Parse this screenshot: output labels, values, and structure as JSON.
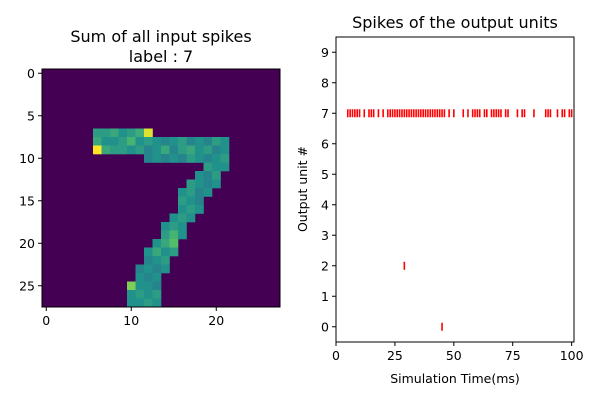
{
  "chart_data": [
    {
      "type": "heatmap",
      "title": "Sum of all input spikes",
      "subtitle": "label : 7",
      "x_ticks": [
        "0",
        "10",
        "20"
      ],
      "y_ticks": [
        "0",
        "5",
        "10",
        "15",
        "20",
        "25"
      ],
      "grid": false,
      "shape": [
        28,
        28
      ],
      "colormap": "viridis",
      "background": "#440154",
      "cells": [
        [
          6,
          7,
          0.55
        ],
        [
          7,
          7,
          0.55
        ],
        [
          8,
          7,
          0.6
        ],
        [
          9,
          7,
          0.5
        ],
        [
          10,
          7,
          0.55
        ],
        [
          11,
          7,
          0.62
        ],
        [
          12,
          7,
          0.95
        ],
        [
          6,
          8,
          0.6
        ],
        [
          7,
          8,
          0.5
        ],
        [
          8,
          8,
          0.5
        ],
        [
          9,
          8,
          0.55
        ],
        [
          10,
          8,
          0.65
        ],
        [
          11,
          8,
          0.5
        ],
        [
          12,
          8,
          0.55
        ],
        [
          13,
          8,
          0.5
        ],
        [
          14,
          8,
          0.45
        ],
        [
          15,
          8,
          0.5
        ],
        [
          16,
          8,
          0.55
        ],
        [
          17,
          8,
          0.45
        ],
        [
          18,
          8,
          0.5
        ],
        [
          19,
          8,
          0.45
        ],
        [
          20,
          8,
          0.55
        ],
        [
          21,
          8,
          0.5
        ],
        [
          6,
          9,
          1.0
        ],
        [
          7,
          9,
          0.6
        ],
        [
          8,
          9,
          0.55
        ],
        [
          9,
          9,
          0.55
        ],
        [
          10,
          9,
          0.5
        ],
        [
          11,
          9,
          0.55
        ],
        [
          12,
          9,
          0.45
        ],
        [
          13,
          9,
          0.5
        ],
        [
          14,
          9,
          0.6
        ],
        [
          15,
          9,
          0.45
        ],
        [
          16,
          9,
          0.55
        ],
        [
          17,
          9,
          0.6
        ],
        [
          18,
          9,
          0.5
        ],
        [
          19,
          9,
          0.55
        ],
        [
          20,
          9,
          0.45
        ],
        [
          21,
          9,
          0.5
        ],
        [
          12,
          10,
          0.45
        ],
        [
          13,
          10,
          0.5
        ],
        [
          14,
          10,
          0.45
        ],
        [
          15,
          10,
          0.5
        ],
        [
          16,
          10,
          0.45
        ],
        [
          17,
          10,
          0.55
        ],
        [
          18,
          10,
          0.5
        ],
        [
          19,
          10,
          0.45
        ],
        [
          20,
          10,
          0.5
        ],
        [
          21,
          10,
          0.55
        ],
        [
          19,
          11,
          0.55
        ],
        [
          20,
          11,
          0.5
        ],
        [
          21,
          11,
          0.5
        ],
        [
          18,
          12,
          0.5
        ],
        [
          19,
          12,
          0.45
        ],
        [
          20,
          12,
          0.55
        ],
        [
          17,
          13,
          0.55
        ],
        [
          18,
          13,
          0.5
        ],
        [
          19,
          13,
          0.45
        ],
        [
          20,
          13,
          0.5
        ],
        [
          16,
          14,
          0.5
        ],
        [
          17,
          14,
          0.55
        ],
        [
          18,
          14,
          0.45
        ],
        [
          19,
          14,
          0.5
        ],
        [
          16,
          15,
          0.55
        ],
        [
          17,
          15,
          0.5
        ],
        [
          18,
          15,
          0.45
        ],
        [
          16,
          16,
          0.5
        ],
        [
          17,
          16,
          0.55
        ],
        [
          18,
          16,
          0.5
        ],
        [
          15,
          17,
          0.5
        ],
        [
          16,
          17,
          0.55
        ],
        [
          17,
          17,
          0.5
        ],
        [
          14,
          18,
          0.5
        ],
        [
          15,
          18,
          0.55
        ],
        [
          16,
          18,
          0.5
        ],
        [
          14,
          19,
          0.55
        ],
        [
          15,
          19,
          0.65
        ],
        [
          16,
          19,
          0.5
        ],
        [
          13,
          20,
          0.5
        ],
        [
          14,
          20,
          0.6
        ],
        [
          15,
          20,
          0.7
        ],
        [
          12,
          21,
          0.5
        ],
        [
          13,
          21,
          0.6
        ],
        [
          14,
          21,
          0.5
        ],
        [
          15,
          21,
          0.55
        ],
        [
          12,
          22,
          0.45
        ],
        [
          13,
          22,
          0.5
        ],
        [
          14,
          22,
          0.55
        ],
        [
          11,
          23,
          0.45
        ],
        [
          12,
          23,
          0.5
        ],
        [
          13,
          23,
          0.45
        ],
        [
          14,
          23,
          0.5
        ],
        [
          11,
          24,
          0.5
        ],
        [
          12,
          24,
          0.45
        ],
        [
          13,
          24,
          0.5
        ],
        [
          10,
          25,
          0.8
        ],
        [
          11,
          25,
          0.5
        ],
        [
          12,
          25,
          0.5
        ],
        [
          13,
          25,
          0.45
        ],
        [
          10,
          26,
          0.5
        ],
        [
          11,
          26,
          0.55
        ],
        [
          12,
          26,
          0.5
        ],
        [
          13,
          26,
          0.55
        ],
        [
          10,
          27,
          0.5
        ],
        [
          11,
          27,
          0.5
        ],
        [
          12,
          27,
          0.55
        ],
        [
          13,
          27,
          0.5
        ]
      ]
    },
    {
      "type": "scatter",
      "title": "Spikes of the output units",
      "xlabel": "Simulation Time(ms)",
      "ylabel": "Output unit #",
      "xlim": [
        0,
        101
      ],
      "ylim": [
        -0.5,
        9.5
      ],
      "x_ticks": [
        0,
        25,
        50,
        75,
        100
      ],
      "y_ticks": [
        0,
        1,
        2,
        3,
        4,
        5,
        6,
        7,
        8,
        9
      ],
      "grid": false,
      "marker": "|",
      "marker_color": "#ff0000",
      "series": [
        {
          "points": [
            {
              "x": 5,
              "y": 7
            },
            {
              "x": 6,
              "y": 7
            },
            {
              "x": 7,
              "y": 7
            },
            {
              "x": 8,
              "y": 7
            },
            {
              "x": 9,
              "y": 7
            },
            {
              "x": 10,
              "y": 7
            },
            {
              "x": 12,
              "y": 7
            },
            {
              "x": 14,
              "y": 7
            },
            {
              "x": 15,
              "y": 7
            },
            {
              "x": 16,
              "y": 7
            },
            {
              "x": 18,
              "y": 7
            },
            {
              "x": 20,
              "y": 7
            },
            {
              "x": 22,
              "y": 7
            },
            {
              "x": 23,
              "y": 7
            },
            {
              "x": 24,
              "y": 7
            },
            {
              "x": 25,
              "y": 7
            },
            {
              "x": 26,
              "y": 7
            },
            {
              "x": 27,
              "y": 7
            },
            {
              "x": 28,
              "y": 7
            },
            {
              "x": 29,
              "y": 7
            },
            {
              "x": 30,
              "y": 7
            },
            {
              "x": 31,
              "y": 7
            },
            {
              "x": 32,
              "y": 7
            },
            {
              "x": 33,
              "y": 7
            },
            {
              "x": 34,
              "y": 7
            },
            {
              "x": 35,
              "y": 7
            },
            {
              "x": 36,
              "y": 7
            },
            {
              "x": 37,
              "y": 7
            },
            {
              "x": 38,
              "y": 7
            },
            {
              "x": 39,
              "y": 7
            },
            {
              "x": 40,
              "y": 7
            },
            {
              "x": 41,
              "y": 7
            },
            {
              "x": 42,
              "y": 7
            },
            {
              "x": 43,
              "y": 7
            },
            {
              "x": 44,
              "y": 7
            },
            {
              "x": 45,
              "y": 7
            },
            {
              "x": 46,
              "y": 7
            },
            {
              "x": 48,
              "y": 7
            },
            {
              "x": 50,
              "y": 7
            },
            {
              "x": 54,
              "y": 7
            },
            {
              "x": 56,
              "y": 7
            },
            {
              "x": 58,
              "y": 7
            },
            {
              "x": 59,
              "y": 7
            },
            {
              "x": 60,
              "y": 7
            },
            {
              "x": 61,
              "y": 7
            },
            {
              "x": 63,
              "y": 7
            },
            {
              "x": 64,
              "y": 7
            },
            {
              "x": 66,
              "y": 7
            },
            {
              "x": 67,
              "y": 7
            },
            {
              "x": 68,
              "y": 7
            },
            {
              "x": 69,
              "y": 7
            },
            {
              "x": 70,
              "y": 7
            },
            {
              "x": 72,
              "y": 7
            },
            {
              "x": 73,
              "y": 7
            },
            {
              "x": 77,
              "y": 7
            },
            {
              "x": 79,
              "y": 7
            },
            {
              "x": 80,
              "y": 7
            },
            {
              "x": 84,
              "y": 7
            },
            {
              "x": 89,
              "y": 7
            },
            {
              "x": 90,
              "y": 7
            },
            {
              "x": 91,
              "y": 7
            },
            {
              "x": 94,
              "y": 7
            },
            {
              "x": 96,
              "y": 7
            },
            {
              "x": 97,
              "y": 7
            },
            {
              "x": 99,
              "y": 7
            },
            {
              "x": 100,
              "y": 7
            },
            {
              "x": 29,
              "y": 2
            },
            {
              "x": 45,
              "y": 0
            }
          ]
        }
      ]
    }
  ]
}
